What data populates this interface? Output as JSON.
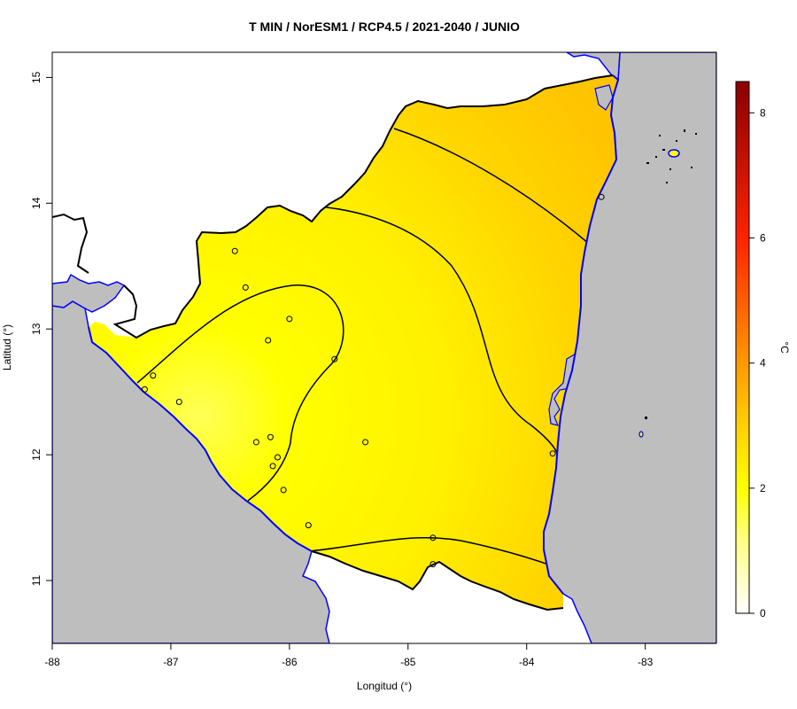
{
  "title": "T MIN / NorESM1 / RCP4.5 / 2021-2040 / JUNIO",
  "colors": {
    "sea": "#bebebe",
    "coast": "#0000ff",
    "border": "#000000",
    "plot_background": "#ffffff",
    "lake": "#bebebe"
  },
  "chart_data": {
    "type": "heatmap",
    "title": "T MIN / NorESM1 / RCP4.5 / 2021-2040 / JUNIO",
    "xlabel": "Longitud (°)",
    "ylabel": "Latitud (°)",
    "xlim": [
      -88,
      -82.4
    ],
    "ylim": [
      10.5,
      15.2
    ],
    "x_ticks": [
      -88,
      -87,
      -86,
      -85,
      -84,
      -83
    ],
    "x_tick_labels": [
      "-88",
      "-87",
      "-86",
      "-85",
      "-84",
      "-83"
    ],
    "y_ticks": [
      11,
      12,
      13,
      14,
      15
    ],
    "y_tick_labels": [
      "11",
      "12",
      "13",
      "14",
      "15"
    ],
    "grid": false,
    "colorbar": {
      "unit": "°C",
      "min": 0,
      "max": 8.5,
      "ticks": [
        0,
        2,
        4,
        6,
        8
      ],
      "tick_labels": [
        "0",
        "2",
        "4",
        "6",
        "8"
      ],
      "stops": [
        {
          "value": 0,
          "color": "#ffffff"
        },
        {
          "value": 1.2,
          "color": "#ffff80"
        },
        {
          "value": 2.0,
          "color": "#ffff00"
        },
        {
          "value": 3.0,
          "color": "#ffd000"
        },
        {
          "value": 4.0,
          "color": "#ff9900"
        },
        {
          "value": 6.0,
          "color": "#ff2200"
        },
        {
          "value": 8.5,
          "color": "#8b0000"
        }
      ]
    },
    "field_range": [
      1.8,
      3.0
    ],
    "stations": [
      {
        "lon": -86.46,
        "lat": 13.62
      },
      {
        "lon": -86.37,
        "lat": 13.33
      },
      {
        "lon": -86.0,
        "lat": 13.08
      },
      {
        "lon": -86.18,
        "lat": 12.91
      },
      {
        "lon": -85.62,
        "lat": 12.76
      },
      {
        "lon": -87.15,
        "lat": 12.63
      },
      {
        "lon": -87.22,
        "lat": 12.52
      },
      {
        "lon": -86.93,
        "lat": 12.42
      },
      {
        "lon": -86.28,
        "lat": 12.1
      },
      {
        "lon": -86.16,
        "lat": 12.14
      },
      {
        "lon": -86.1,
        "lat": 11.98
      },
      {
        "lon": -86.14,
        "lat": 11.91
      },
      {
        "lon": -86.05,
        "lat": 11.72
      },
      {
        "lon": -85.36,
        "lat": 12.1
      },
      {
        "lon": -85.84,
        "lat": 11.44
      },
      {
        "lon": -84.79,
        "lat": 11.13
      },
      {
        "lon": -84.79,
        "lat": 11.34
      },
      {
        "lon": -83.78,
        "lat": 12.01
      },
      {
        "lon": -83.37,
        "lat": 14.05
      }
    ]
  }
}
